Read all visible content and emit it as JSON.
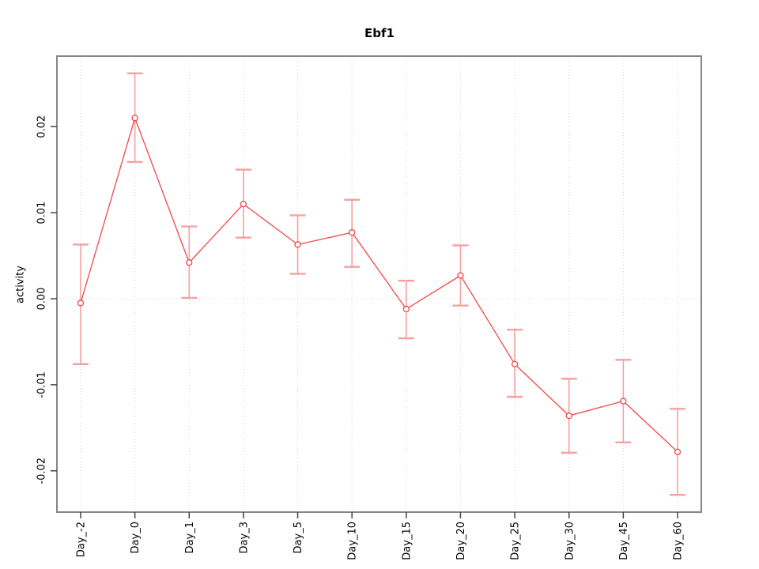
{
  "title": "Ebf1",
  "y_axis": {
    "label": "activity",
    "tick_labels": [
      "0.02",
      "0.01",
      "0.00",
      "-0.01",
      "-0.02"
    ]
  },
  "x_axis": {
    "tick_labels": [
      "Day_-2",
      "Day_0",
      "Day_1",
      "Day_3",
      "Day_5",
      "Day_10",
      "Day_15",
      "Day_20",
      "Day_25",
      "Day_30",
      "Day_45",
      "Day_60"
    ]
  },
  "chart_data": {
    "type": "line",
    "title": "Ebf1",
    "xlabel": "",
    "ylabel": "activity",
    "categories": [
      "Day_-2",
      "Day_0",
      "Day_1",
      "Day_3",
      "Day_5",
      "Day_10",
      "Day_15",
      "Day_20",
      "Day_25",
      "Day_30",
      "Day_45",
      "Day_60"
    ],
    "series": [
      {
        "name": "Ebf1 activity",
        "values": [
          -0.0005,
          0.021,
          0.0042,
          0.011,
          0.0063,
          0.0077,
          -0.0012,
          0.0027,
          -0.0076,
          -0.0136,
          -0.0119,
          -0.0178
        ],
        "error_high": [
          0.0063,
          0.0262,
          0.0084,
          0.015,
          0.0097,
          0.0115,
          0.0021,
          0.0062,
          -0.0036,
          -0.0093,
          -0.0071,
          -0.0128
        ],
        "error_low": [
          -0.0076,
          0.0159,
          0.0001,
          0.0071,
          0.0029,
          0.0037,
          -0.0046,
          -0.0008,
          -0.0114,
          -0.0179,
          -0.0167,
          -0.0228
        ]
      }
    ],
    "ylim": [
      -0.0248,
      0.0282
    ],
    "yticks": [
      0.02,
      0.01,
      0,
      -0.01,
      -0.02
    ],
    "ytick_labels": [
      "0.02",
      "0.01",
      "0.00",
      "-0.01",
      "-0.02"
    ],
    "grid": {
      "vertical": "dotted line at each category",
      "horizontal": "dotted line at y = 0"
    },
    "legend": "none",
    "marker": "open-circle",
    "colors": {
      "line": "#f05454",
      "point": "#ee4848",
      "error_bar": "#f7a0a0",
      "box": "#868686",
      "tick": "#444444",
      "grid": "#d2d2d2",
      "text": "#000000",
      "background": "#ffffff"
    }
  }
}
